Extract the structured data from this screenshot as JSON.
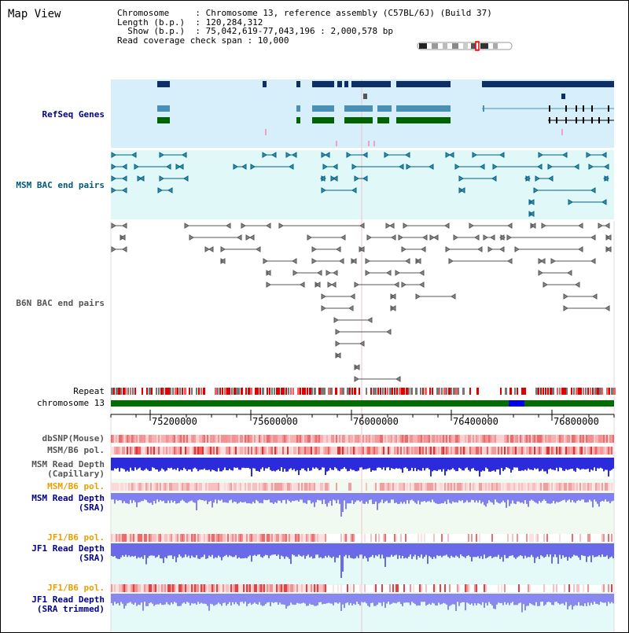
{
  "page": {
    "title": "Map View"
  },
  "header": {
    "line1": "Chromosome     : Chromosome 13, reference assembly (C57BL/6J) (Build 37)",
    "line2": "Length (b.p.)  : 120,284,312",
    "line3": "  Show (b.p.)  : 75,042,619-77,043,196 : 2,000,578 bp",
    "line4": "Read coverage check span : 10,000"
  },
  "tracks": {
    "refseq": "RefSeq Genes",
    "msm_bac": "MSM BAC end pairs",
    "b6n_bac": "B6N BAC end pairs",
    "repeat": "Repeat",
    "chromosome": "chromosome 13",
    "dbsnp": "dbSNP(Mouse)",
    "msm_pol1": "MSM/B6 pol.",
    "msm_depth_cap_1": "MSM Read Depth",
    "msm_depth_cap_2": "(Capillary)",
    "msm_pol2": "MSM/B6 pol.",
    "msm_depth_sra_1": "MSM Read Depth",
    "msm_depth_sra_2": "(SRA)",
    "jf1_pol1": "JF1/B6 pol.",
    "jf1_depth_sra_1": "JF1 Read Depth",
    "jf1_depth_sra_2": "(SRA)",
    "jf1_pol2": "JF1/B6 pol.",
    "jf1_depth_trim_1": "JF1 Read Depth",
    "jf1_depth_trim_2": "(SRA trimmed)"
  },
  "axis": {
    "ticks": [
      "75200000",
      "75600000",
      "76000000",
      "76400000",
      "76800000"
    ]
  },
  "colors": {
    "refseq_bg": "#d7effa",
    "msm_bg": "#e0f8f8",
    "navy": "#0b2f66",
    "steel": "#4a8fb5",
    "green": "#006400",
    "chrom_green": "#006e00"
  }
}
